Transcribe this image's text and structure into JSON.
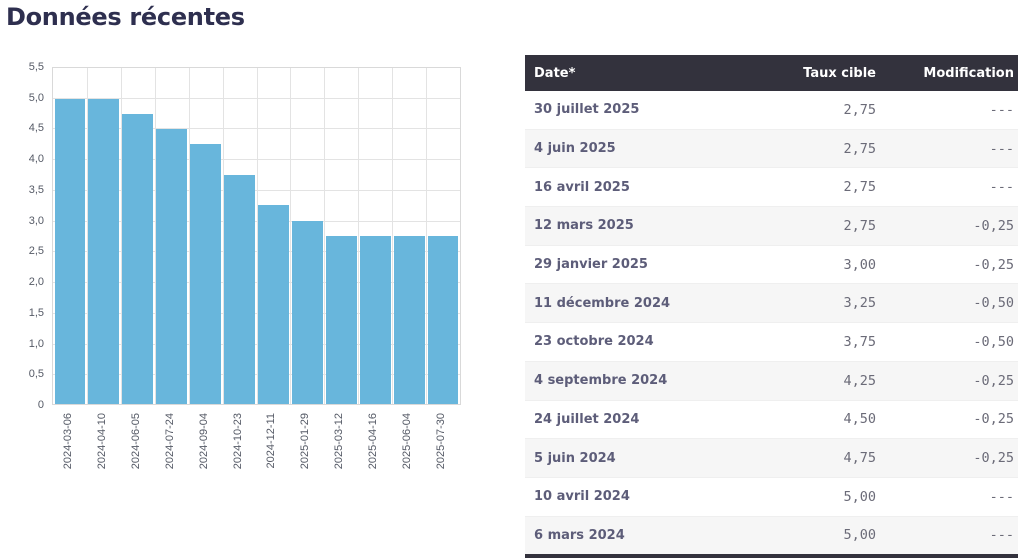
{
  "page": {
    "title": "Données récentes"
  },
  "colors": {
    "bar": "#68b6dc",
    "header_bg": "#33323d",
    "title": "#2e2f4f"
  },
  "chart_data": {
    "type": "bar",
    "title": "",
    "xlabel": "",
    "ylabel": "",
    "ylim": [
      0,
      5.5
    ],
    "grid": true,
    "yticks": [
      "0",
      "0,5",
      "1,0",
      "1,5",
      "2,0",
      "2,5",
      "3,0",
      "3,5",
      "4,0",
      "4,5",
      "5,0",
      "5,5"
    ],
    "categories": [
      "2024-03-06",
      "2024-04-10",
      "2024-06-05",
      "2024-07-24",
      "2024-09-04",
      "2024-10-23",
      "2024-12-11",
      "2025-01-29",
      "2025-03-12",
      "2025-04-16",
      "2025-06-04",
      "2025-07-30"
    ],
    "values": [
      5.0,
      5.0,
      4.75,
      4.5,
      4.25,
      3.75,
      3.25,
      3.0,
      2.75,
      2.75,
      2.75,
      2.75
    ]
  },
  "table": {
    "headers": {
      "date": "Date*",
      "rate": "Taux cible",
      "change": "Modification"
    },
    "rows": [
      {
        "date": "30 juillet 2025",
        "rate": "2,75",
        "change": "---"
      },
      {
        "date": "4 juin 2025",
        "rate": "2,75",
        "change": "---"
      },
      {
        "date": "16 avril 2025",
        "rate": "2,75",
        "change": "---"
      },
      {
        "date": "12 mars 2025",
        "rate": "2,75",
        "change": "-0,25"
      },
      {
        "date": "29 janvier 2025",
        "rate": "3,00",
        "change": "-0,25"
      },
      {
        "date": "11 décembre 2024",
        "rate": "3,25",
        "change": "-0,50"
      },
      {
        "date": "23 octobre 2024",
        "rate": "3,75",
        "change": "-0,50"
      },
      {
        "date": "4 septembre 2024",
        "rate": "4,25",
        "change": "-0,25"
      },
      {
        "date": "24 juillet 2024",
        "rate": "4,50",
        "change": "-0,25"
      },
      {
        "date": "5 juin 2024",
        "rate": "4,75",
        "change": "-0,25"
      },
      {
        "date": "10 avril 2024",
        "rate": "5,00",
        "change": "---"
      },
      {
        "date": "6 mars 2024",
        "rate": "5,00",
        "change": "---"
      }
    ]
  }
}
